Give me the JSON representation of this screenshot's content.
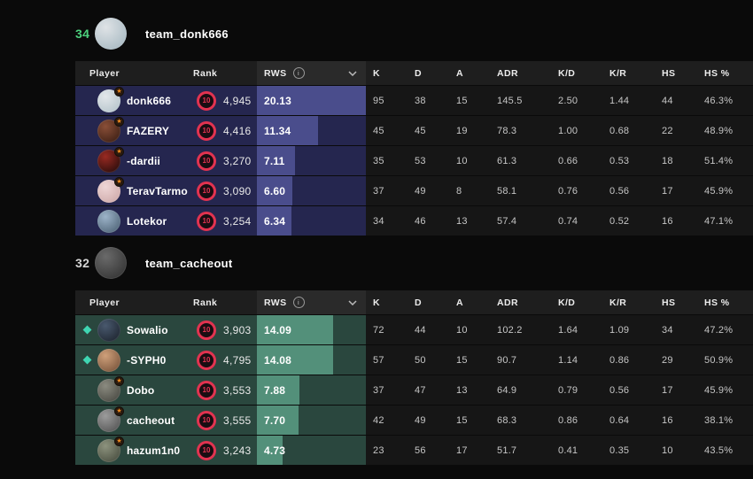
{
  "colors": {
    "page_bg": "#0a0a0a",
    "table_header_bg": "#1e1e1e",
    "rws_header_bg": "#2a2a2a",
    "stats_area_bg": "#161616",
    "level_badge_red": "#e23350",
    "star_badge_orange": "#f28b1d",
    "diamond_teal": "#3fd6b2",
    "winner_score_green": "#4cd07d",
    "loser_score_gray": "#d6d6d6"
  },
  "icons": {
    "info_icon": "i",
    "chevron_down_icon": "⌄",
    "star_icon": "★",
    "diamond_icon": "◆",
    "level_icon": "10"
  },
  "table": {
    "rws_max": 20.13,
    "headers": {
      "player": "Player",
      "rank": "Rank",
      "rws": "RWS",
      "stats": [
        "K",
        "D",
        "A",
        "ADR",
        "K/D",
        "K/R",
        "HS",
        "HS %"
      ]
    }
  },
  "teams": [
    {
      "score": "34",
      "score_color": "#4cd07d",
      "name": "team_donk666",
      "avatar": [
        "#dfe3e6",
        "#9fb3bd"
      ],
      "row_bg": "#25264f",
      "bar_fill": "#4a4d8c",
      "players": [
        {
          "name": "donk666",
          "marker": "star",
          "level": "10",
          "elo": "4,945",
          "rws": "20.13",
          "avatar": [
            "#e3e7ea",
            "#aebfc7"
          ],
          "stats": [
            "95",
            "38",
            "15",
            "145.5",
            "2.50",
            "1.44",
            "44",
            "46.3%"
          ]
        },
        {
          "name": "FAZERY",
          "marker": "star",
          "level": "10",
          "elo": "4,416",
          "rws": "11.34",
          "avatar": [
            "#8a4f38",
            "#31180f"
          ],
          "stats": [
            "45",
            "45",
            "19",
            "78.3",
            "1.00",
            "0.68",
            "22",
            "48.9%"
          ]
        },
        {
          "name": "-dardii",
          "marker": "star",
          "level": "10",
          "elo": "3,270",
          "rws": "7.11",
          "avatar": [
            "#992a22",
            "#170808"
          ],
          "stats": [
            "35",
            "53",
            "10",
            "61.3",
            "0.66",
            "0.53",
            "18",
            "51.4%"
          ]
        },
        {
          "name": "TeravTarmo",
          "marker": "star",
          "level": "10",
          "elo": "3,090",
          "rws": "6.60",
          "avatar": [
            "#efd6d6",
            "#c9a3a3"
          ],
          "stats": [
            "37",
            "49",
            "8",
            "58.1",
            "0.76",
            "0.56",
            "17",
            "45.9%"
          ]
        },
        {
          "name": "Lotekor",
          "marker": "none",
          "level": "10",
          "elo": "3,254",
          "rws": "6.34",
          "avatar": [
            "#9db4c9",
            "#44596c"
          ],
          "stats": [
            "34",
            "46",
            "13",
            "57.4",
            "0.74",
            "0.52",
            "16",
            "47.1%"
          ]
        }
      ]
    },
    {
      "score": "32",
      "score_color": "#d6d6d6",
      "name": "team_cacheout",
      "avatar": [
        "#6a6a6a",
        "#2b2b2b"
      ],
      "row_bg": "#2a473e",
      "bar_fill": "#53907a",
      "players": [
        {
          "name": "Sowalio",
          "marker": "diamond",
          "level": "10",
          "elo": "3,903",
          "rws": "14.09",
          "avatar": [
            "#49596e",
            "#171d26"
          ],
          "stats": [
            "72",
            "44",
            "10",
            "102.2",
            "1.64",
            "1.09",
            "34",
            "47.2%"
          ]
        },
        {
          "name": "-SYPH0",
          "marker": "diamond",
          "level": "10",
          "elo": "4,795",
          "rws": "14.08",
          "avatar": [
            "#cfa07a",
            "#6d4a33"
          ],
          "stats": [
            "57",
            "50",
            "15",
            "90.7",
            "1.14",
            "0.86",
            "29",
            "50.9%"
          ]
        },
        {
          "name": "Dobo",
          "marker": "star",
          "level": "10",
          "elo": "3,553",
          "rws": "7.88",
          "avatar": [
            "#8b8b80",
            "#40403a"
          ],
          "stats": [
            "37",
            "47",
            "13",
            "64.9",
            "0.79",
            "0.56",
            "17",
            "45.9%"
          ]
        },
        {
          "name": "cacheout",
          "marker": "star",
          "level": "10",
          "elo": "3,555",
          "rws": "7.70",
          "avatar": [
            "#9c9c9c",
            "#4a4a4a"
          ],
          "stats": [
            "42",
            "49",
            "15",
            "68.3",
            "0.86",
            "0.64",
            "16",
            "38.1%"
          ]
        },
        {
          "name": "hazum1n0",
          "marker": "star",
          "level": "10",
          "elo": "3,243",
          "rws": "4.73",
          "avatar": [
            "#8d937e",
            "#3f4437"
          ],
          "stats": [
            "23",
            "56",
            "17",
            "51.7",
            "0.41",
            "0.35",
            "10",
            "43.5%"
          ]
        }
      ]
    }
  ]
}
